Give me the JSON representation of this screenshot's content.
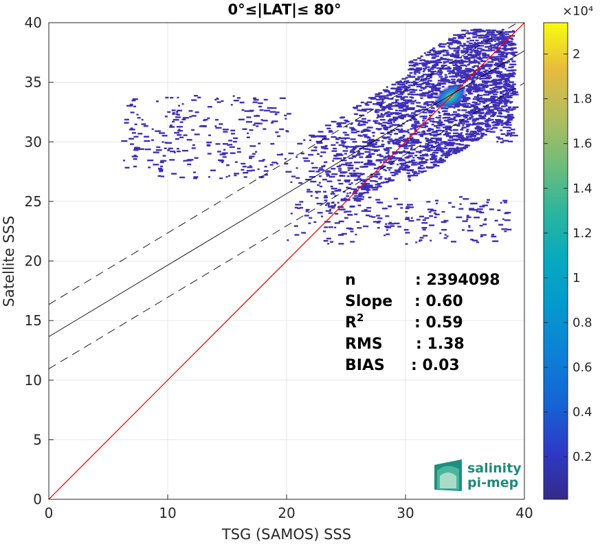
{
  "chart_data": {
    "type": "heatmap",
    "title": "0°≤|LAT|≤ 80°",
    "xlabel": "TSG (SAMOS) SSS",
    "ylabel": "Satellite SSS",
    "xlim": [
      0,
      40
    ],
    "ylim": [
      0,
      40
    ],
    "xticks": [
      0,
      10,
      20,
      30,
      40
    ],
    "yticks": [
      0,
      5,
      10,
      15,
      20,
      25,
      30,
      35,
      40
    ],
    "grid": true,
    "colormap": "parula",
    "colorbar": {
      "ticks": [
        0.2,
        0.4,
        0.6,
        0.8,
        1,
        1.2,
        1.4,
        1.6,
        1.8,
        2
      ],
      "range": [
        0.01,
        2.14
      ],
      "exponent_label": "×10⁴"
    },
    "lines": [
      {
        "name": "one-to-one",
        "color": "#ff0000",
        "style": "solid",
        "intercept": 0,
        "slope": 1
      },
      {
        "name": "regression",
        "color": "#000000",
        "style": "solid",
        "intercept": 13.65,
        "slope": 0.6
      },
      {
        "name": "upper-bound",
        "color": "#000000",
        "style": "dashed",
        "intercept": 16.35,
        "slope": 0.6
      },
      {
        "name": "lower-bound",
        "color": "#000000",
        "style": "dashed",
        "intercept": 10.95,
        "slope": 0.6
      }
    ],
    "stats": [
      {
        "label": "n",
        "value": ": 2394098"
      },
      {
        "label": "Slope",
        "value": ": 0.60"
      },
      {
        "label": "R",
        "sup": "2",
        "value": ": 0.59"
      },
      {
        "label": "RMS",
        "value": ": 1.38"
      },
      {
        "label": "BIAS",
        "value": ": 0.03"
      }
    ],
    "density_peak": {
      "x": 33.8,
      "y": 33.8
    }
  },
  "logo": {
    "line1": "salinity",
    "line2": "pi-mep"
  },
  "colors": {
    "scatter": "#3e2fb8",
    "one_to_one": "#ff0000",
    "fit": "#000000"
  }
}
